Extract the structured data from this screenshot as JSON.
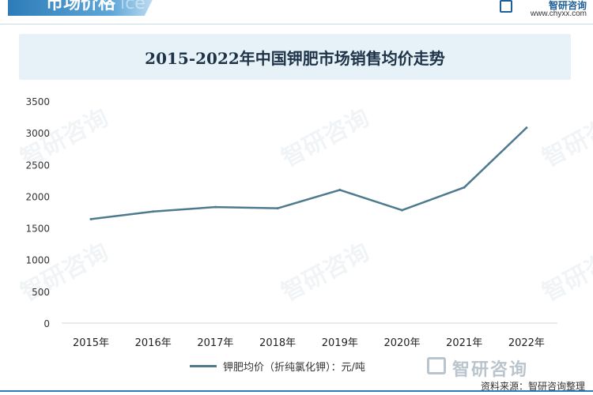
{
  "header": {
    "section_title": "市场价格",
    "ghost_text": "ice",
    "logo_name": "智研咨询",
    "logo_url": "www.chyxx.com"
  },
  "chart_data": {
    "type": "line",
    "title": "2015-2022年中国钾肥市场销售均价走势",
    "categories": [
      "2015年",
      "2016年",
      "2017年",
      "2018年",
      "2019年",
      "2020年",
      "2021年",
      "2022年"
    ],
    "series": [
      {
        "name": "钾肥均价（折纯氯化钾）：元/吨",
        "values": [
          1640,
          1760,
          1830,
          1810,
          2100,
          1780,
          2140,
          3080
        ],
        "color": "#4e7a8e"
      }
    ],
    "yticks": [
      "0",
      "500",
      "1000",
      "1500",
      "2000",
      "2500",
      "3000",
      "3500"
    ],
    "ylim": [
      0,
      3500
    ],
    "grid": false,
    "legend_position": "bottom"
  },
  "watermark": "智研咨询",
  "footer": {
    "brand": "智研咨询",
    "source": "资料来源：智研咨询整理"
  }
}
